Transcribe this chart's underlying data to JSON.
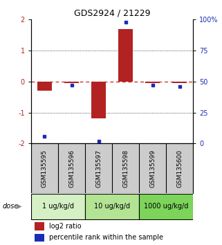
{
  "title": "GDS2924 / 21229",
  "samples": [
    "GSM135595",
    "GSM135596",
    "GSM135597",
    "GSM135598",
    "GSM135599",
    "GSM135600"
  ],
  "log2_ratio": [
    -0.3,
    -0.05,
    -1.2,
    1.7,
    -0.05,
    -0.05
  ],
  "percentile_rank": [
    6,
    47,
    2,
    98,
    47,
    46
  ],
  "dose_groups": [
    {
      "label": "1 ug/kg/d",
      "samples": [
        0,
        1
      ],
      "color": "#d4f0c4"
    },
    {
      "label": "10 ug/kg/d",
      "samples": [
        2,
        3
      ],
      "color": "#b2e494"
    },
    {
      "label": "1000 ug/kg/d",
      "samples": [
        4,
        5
      ],
      "color": "#7dd45a"
    }
  ],
  "ylim_left": [
    -2,
    2
  ],
  "ylim_right": [
    0,
    100
  ],
  "bar_color": "#b22222",
  "dot_color": "#1a2db5",
  "zero_line_color": "#cc2222",
  "grid_line_color": "#222222",
  "sample_box_color": "#cccccc",
  "background_color": "#ffffff",
  "legend_red_label": "log2 ratio",
  "legend_blue_label": "percentile rank within the sample",
  "left_yticks": [
    -2,
    -1,
    0,
    1,
    2
  ],
  "right_yticks": [
    0,
    25,
    50,
    75,
    100
  ],
  "right_yticklabels": [
    "0",
    "25",
    "50",
    "75",
    "100%"
  ]
}
